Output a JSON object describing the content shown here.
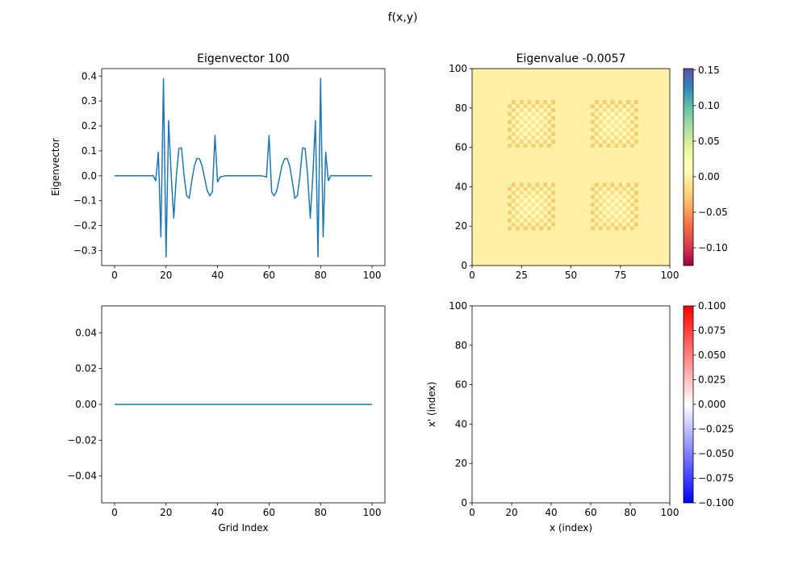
{
  "suptitle": "f(x,y)",
  "chart_data": [
    {
      "type": "line",
      "title": "Eigenvector 100",
      "xlabel": "",
      "ylabel": "Eigenvector",
      "xlim": [
        -5,
        105
      ],
      "ylim": [
        -0.36,
        0.43
      ],
      "xticks": [
        0,
        20,
        40,
        60,
        80,
        100
      ],
      "yticks": [
        -0.3,
        -0.2,
        -0.1,
        0.0,
        0.1,
        0.2,
        0.3,
        0.4
      ],
      "ytick_labels": [
        "−0.3",
        "−0.2",
        "−0.1",
        "0.0",
        "0.1",
        "0.2",
        "0.3",
        "0.4"
      ],
      "grid": false,
      "color": "#1f77b4",
      "x": [
        0,
        1,
        2,
        3,
        4,
        5,
        6,
        7,
        8,
        9,
        10,
        11,
        12,
        13,
        14,
        15,
        16,
        17,
        18,
        19,
        20,
        21,
        22,
        23,
        24,
        25,
        26,
        27,
        28,
        29,
        30,
        31,
        32,
        33,
        34,
        35,
        36,
        37,
        38,
        39,
        40,
        41,
        42,
        43,
        44,
        45,
        46,
        47,
        48,
        49,
        50,
        51,
        52,
        53,
        54,
        55,
        56,
        57,
        58,
        59,
        60,
        61,
        62,
        63,
        64,
        65,
        66,
        67,
        68,
        69,
        70,
        71,
        72,
        73,
        74,
        75,
        76,
        77,
        78,
        79,
        80,
        81,
        82,
        83,
        84,
        85,
        86,
        87,
        88,
        89,
        90,
        91,
        92,
        93,
        94,
        95,
        96,
        97,
        98,
        99,
        100
      ],
      "y": [
        0,
        0,
        0,
        0,
        0,
        0,
        0,
        0,
        0,
        0,
        0,
        0,
        0,
        0,
        0.0,
        0.001,
        -0.02,
        0.095,
        -0.245,
        0.39,
        -0.325,
        0.222,
        0.0,
        -0.17,
        0.0,
        0.11,
        0.112,
        0.0,
        -0.08,
        -0.09,
        -0.02,
        0.04,
        0.07,
        0.068,
        0.04,
        -0.01,
        -0.06,
        -0.08,
        -0.065,
        0.162,
        -0.025,
        -0.005,
        -0.002,
        0,
        0,
        0,
        0,
        0,
        0,
        0,
        0,
        0,
        0,
        0,
        0,
        0,
        0,
        0,
        -0.002,
        -0.005,
        0.162,
        -0.065,
        -0.08,
        -0.06,
        -0.01,
        0.04,
        0.068,
        0.07,
        0.04,
        -0.02,
        -0.09,
        -0.08,
        0.0,
        0.112,
        0.11,
        0.0,
        -0.17,
        0.0,
        0.222,
        -0.325,
        0.39,
        -0.245,
        0.095,
        -0.02,
        0.001,
        0.0,
        0,
        0,
        0,
        0,
        0,
        0,
        0,
        0,
        0,
        0,
        0,
        0,
        0,
        0,
        0
      ]
    },
    {
      "type": "heatmap",
      "title": "Eigenvalue -0.0057",
      "xlabel": "",
      "ylabel": "",
      "xlim": [
        0,
        100
      ],
      "ylim": [
        0,
        100
      ],
      "xticks": [
        0,
        25,
        50,
        75,
        100
      ],
      "yticks": [
        0,
        20,
        40,
        60,
        80,
        100
      ],
      "colormap": "Spectral",
      "background_value": 0.0,
      "checker_amplitude": 0.03,
      "patches": [
        {
          "x": [
            18,
            42
          ],
          "y": [
            18,
            42
          ]
        },
        {
          "x": [
            60,
            84
          ],
          "y": [
            18,
            42
          ]
        },
        {
          "x": [
            18,
            42
          ],
          "y": [
            60,
            84
          ]
        },
        {
          "x": [
            60,
            84
          ],
          "y": [
            60,
            84
          ]
        }
      ],
      "colorbar": {
        "vmin": -0.125,
        "vmax": 0.152,
        "ticks": [
          -0.1,
          -0.05,
          0.0,
          0.05,
          0.1,
          0.15
        ],
        "tick_labels": [
          "−0.10",
          "−0.05",
          "0.00",
          "0.05",
          "0.10",
          "0.15"
        ],
        "colors": [
          "#9e0142",
          "#d53e4f",
          "#f46d43",
          "#fdae61",
          "#fee08b",
          "#ffffbf",
          "#e6f598",
          "#abdda4",
          "#66c2a5",
          "#3288bd",
          "#5e4fa2"
        ]
      }
    },
    {
      "type": "line",
      "title": "",
      "xlabel": "Grid Index",
      "ylabel": "",
      "xlim": [
        -5,
        105
      ],
      "ylim": [
        -0.055,
        0.055
      ],
      "xticks": [
        0,
        20,
        40,
        60,
        80,
        100
      ],
      "yticks": [
        -0.04,
        -0.02,
        0.0,
        0.02,
        0.04
      ],
      "ytick_labels": [
        "−0.04",
        "−0.02",
        "0.00",
        "0.02",
        "0.04"
      ],
      "grid": false,
      "color": "#1f77b4",
      "x": [
        0,
        100
      ],
      "y": [
        0,
        0
      ]
    },
    {
      "type": "heatmap",
      "title": "",
      "xlabel": "x (index)",
      "ylabel": "x' (index)",
      "xlim": [
        0,
        100
      ],
      "ylim": [
        0,
        100
      ],
      "xticks": [
        0,
        20,
        40,
        60,
        80,
        100
      ],
      "yticks": [
        0,
        20,
        40,
        60,
        80,
        100
      ],
      "colormap": "bwr",
      "background_value": 0.0,
      "colorbar": {
        "vmin": -0.1,
        "vmax": 0.1,
        "ticks": [
          -0.1,
          -0.075,
          -0.05,
          -0.025,
          0.0,
          0.025,
          0.05,
          0.075,
          0.1
        ],
        "tick_labels": [
          "−0.100",
          "−0.075",
          "−0.050",
          "−0.025",
          "0.000",
          "0.025",
          "0.050",
          "0.075",
          "0.100"
        ],
        "colors": [
          "#0000ff",
          "#ffffff",
          "#ff0000"
        ]
      }
    }
  ]
}
